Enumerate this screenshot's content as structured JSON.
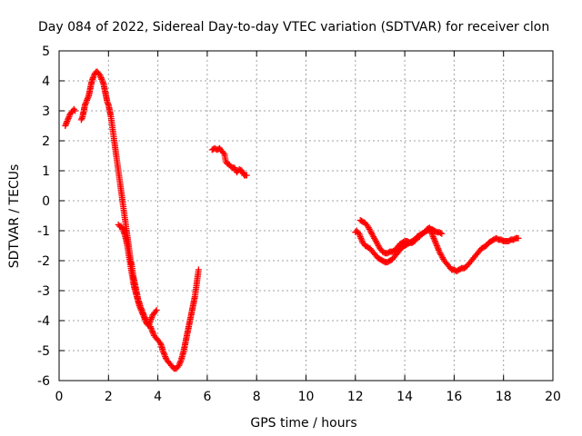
{
  "chart_data": {
    "type": "scatter",
    "title": "Day 084 of 2022, Sidereal Day-to-day VTEC variation (SDTVAR) for receiver clon",
    "xlabel": "GPS time / hours",
    "ylabel": "SDTVAR / TECUs",
    "xlim": [
      0,
      20
    ],
    "ylim": [
      -6,
      5
    ],
    "xticks": [
      0,
      2,
      4,
      6,
      8,
      10,
      12,
      14,
      16,
      18,
      20
    ],
    "yticks": [
      -6,
      -5,
      -4,
      -3,
      -2,
      -1,
      0,
      1,
      2,
      3,
      4,
      5
    ],
    "grid": true,
    "marker": "+",
    "color": "#ff0000",
    "series": [
      {
        "name": "SDTVAR",
        "segments": [
          [
            [
              0.25,
              2.5
            ],
            [
              0.3,
              2.6
            ],
            [
              0.35,
              2.7
            ],
            [
              0.4,
              2.8
            ],
            [
              0.45,
              2.9
            ],
            [
              0.5,
              2.95
            ],
            [
              0.55,
              3.0
            ],
            [
              0.6,
              3.05
            ],
            [
              0.65,
              3.0
            ]
          ],
          [
            [
              0.9,
              2.7
            ],
            [
              0.95,
              2.8
            ],
            [
              1.0,
              3.0
            ],
            [
              1.05,
              3.2
            ],
            [
              1.1,
              3.3
            ],
            [
              1.15,
              3.4
            ],
            [
              1.2,
              3.5
            ],
            [
              1.25,
              3.7
            ],
            [
              1.3,
              3.9
            ],
            [
              1.35,
              4.05
            ],
            [
              1.4,
              4.15
            ],
            [
              1.45,
              4.25
            ],
            [
              1.5,
              4.3
            ],
            [
              1.55,
              4.3
            ],
            [
              1.6,
              4.25
            ],
            [
              1.65,
              4.2
            ],
            [
              1.7,
              4.1
            ],
            [
              1.75,
              4.0
            ],
            [
              1.8,
              3.9
            ],
            [
              1.85,
              3.7
            ],
            [
              1.9,
              3.5
            ],
            [
              1.95,
              3.3
            ],
            [
              2.0,
              3.2
            ],
            [
              2.05,
              3.0
            ],
            [
              2.1,
              2.8
            ],
            [
              2.15,
              2.5
            ],
            [
              2.2,
              2.2
            ],
            [
              2.25,
              1.9
            ],
            [
              2.3,
              1.6
            ],
            [
              2.35,
              1.3
            ],
            [
              2.4,
              1.0
            ],
            [
              2.45,
              0.7
            ],
            [
              2.5,
              0.4
            ],
            [
              2.55,
              0.1
            ],
            [
              2.6,
              -0.2
            ],
            [
              2.65,
              -0.5
            ],
            [
              2.7,
              -0.8
            ],
            [
              2.75,
              -1.1
            ],
            [
              2.8,
              -1.4
            ],
            [
              2.85,
              -1.7
            ],
            [
              2.9,
              -2.0
            ],
            [
              2.95,
              -2.2
            ],
            [
              3.0,
              -2.5
            ],
            [
              3.05,
              -2.7
            ],
            [
              3.1,
              -2.9
            ],
            [
              3.15,
              -3.1
            ],
            [
              3.2,
              -3.3
            ],
            [
              3.25,
              -3.4
            ],
            [
              3.3,
              -3.55
            ],
            [
              3.35,
              -3.65
            ],
            [
              3.4,
              -3.75
            ],
            [
              3.45,
              -3.85
            ],
            [
              3.5,
              -3.95
            ],
            [
              3.55,
              -4.05
            ],
            [
              3.6,
              -4.1
            ],
            [
              3.65,
              -4.15
            ],
            [
              3.7,
              -4.2
            ],
            [
              3.75,
              -4.3
            ],
            [
              3.8,
              -4.4
            ],
            [
              3.85,
              -4.5
            ],
            [
              3.9,
              -4.55
            ],
            [
              3.95,
              -4.6
            ],
            [
              4.0,
              -4.65
            ],
            [
              4.05,
              -4.7
            ],
            [
              4.1,
              -4.75
            ],
            [
              4.15,
              -4.85
            ],
            [
              4.2,
              -5.0
            ],
            [
              4.25,
              -5.1
            ],
            [
              4.3,
              -5.2
            ],
            [
              4.35,
              -5.3
            ],
            [
              4.4,
              -5.35
            ],
            [
              4.45,
              -5.4
            ],
            [
              4.5,
              -5.45
            ],
            [
              4.55,
              -5.5
            ],
            [
              4.6,
              -5.55
            ],
            [
              4.65,
              -5.6
            ],
            [
              4.7,
              -5.6
            ],
            [
              4.75,
              -5.6
            ],
            [
              4.8,
              -5.55
            ],
            [
              4.85,
              -5.5
            ],
            [
              4.9,
              -5.4
            ],
            [
              4.95,
              -5.3
            ],
            [
              5.0,
              -5.15
            ],
            [
              5.05,
              -5.0
            ],
            [
              5.1,
              -4.8
            ],
            [
              5.15,
              -4.6
            ],
            [
              5.2,
              -4.4
            ],
            [
              5.25,
              -4.2
            ],
            [
              5.3,
              -4.0
            ],
            [
              5.35,
              -3.8
            ],
            [
              5.4,
              -3.6
            ],
            [
              5.45,
              -3.4
            ],
            [
              5.5,
              -3.2
            ],
            [
              5.55,
              -2.9
            ],
            [
              5.6,
              -2.6
            ],
            [
              5.65,
              -2.3
            ]
          ],
          [
            [
              2.4,
              -0.8
            ],
            [
              2.45,
              -0.85
            ],
            [
              2.5,
              -0.85
            ],
            [
              2.55,
              -0.9
            ],
            [
              2.6,
              -1.0
            ],
            [
              2.65,
              -1.1
            ],
            [
              2.7,
              -1.25
            ],
            [
              2.75,
              -1.45
            ],
            [
              2.8,
              -1.7
            ],
            [
              2.85,
              -1.95
            ],
            [
              2.9,
              -2.2
            ],
            [
              2.95,
              -2.45
            ],
            [
              3.0,
              -2.7
            ],
            [
              3.05,
              -2.9
            ],
            [
              3.1,
              -3.05
            ],
            [
              3.15,
              -3.2
            ],
            [
              3.2,
              -3.35
            ],
            [
              3.25,
              -3.5
            ],
            [
              3.3,
              -3.6
            ],
            [
              3.35,
              -3.7
            ],
            [
              3.4,
              -3.8
            ],
            [
              3.45,
              -3.9
            ],
            [
              3.5,
              -4.0
            ],
            [
              3.55,
              -4.1
            ],
            [
              3.6,
              -4.15
            ],
            [
              3.65,
              -4.1
            ],
            [
              3.7,
              -4.0
            ],
            [
              3.75,
              -3.9
            ],
            [
              3.8,
              -3.8
            ],
            [
              3.85,
              -3.75
            ],
            [
              3.9,
              -3.7
            ],
            [
              3.95,
              -3.65
            ]
          ],
          [
            [
              6.2,
              1.7
            ],
            [
              6.3,
              1.75
            ],
            [
              6.4,
              1.7
            ],
            [
              6.5,
              1.75
            ],
            [
              6.6,
              1.65
            ],
            [
              6.7,
              1.55
            ],
            [
              6.75,
              1.3
            ],
            [
              6.8,
              1.25
            ],
            [
              6.9,
              1.2
            ],
            [
              7.0,
              1.1
            ],
            [
              7.1,
              1.1
            ],
            [
              7.2,
              0.95
            ],
            [
              7.3,
              1.05
            ],
            [
              7.4,
              1.0
            ],
            [
              7.5,
              0.85
            ],
            [
              7.6,
              0.85
            ]
          ],
          [
            [
              12.0,
              -1.05
            ],
            [
              12.05,
              -1.0
            ],
            [
              12.1,
              -1.05
            ],
            [
              12.15,
              -1.1
            ],
            [
              12.2,
              -1.2
            ],
            [
              12.25,
              -1.3
            ],
            [
              12.3,
              -1.4
            ],
            [
              12.35,
              -1.45
            ],
            [
              12.4,
              -1.5
            ],
            [
              12.5,
              -1.55
            ],
            [
              12.6,
              -1.6
            ],
            [
              12.7,
              -1.7
            ],
            [
              12.8,
              -1.8
            ],
            [
              12.9,
              -1.9
            ],
            [
              13.0,
              -1.95
            ],
            [
              13.1,
              -2.0
            ],
            [
              13.2,
              -2.05
            ],
            [
              13.3,
              -2.05
            ],
            [
              13.4,
              -2.0
            ],
            [
              13.5,
              -1.95
            ],
            [
              13.6,
              -1.85
            ],
            [
              13.7,
              -1.75
            ],
            [
              13.8,
              -1.65
            ],
            [
              13.9,
              -1.55
            ],
            [
              14.0,
              -1.5
            ],
            [
              14.1,
              -1.45
            ],
            [
              14.2,
              -1.4
            ],
            [
              14.3,
              -1.35
            ],
            [
              14.4,
              -1.3
            ],
            [
              14.5,
              -1.2
            ],
            [
              14.6,
              -1.15
            ],
            [
              14.7,
              -1.1
            ],
            [
              14.8,
              -1.05
            ],
            [
              14.9,
              -1.0
            ],
            [
              15.0,
              -0.95
            ],
            [
              15.1,
              -0.95
            ],
            [
              15.2,
              -1.0
            ],
            [
              15.3,
              -1.05
            ],
            [
              15.4,
              -1.05
            ],
            [
              15.5,
              -1.1
            ]
          ],
          [
            [
              12.2,
              -0.65
            ],
            [
              12.3,
              -0.7
            ],
            [
              12.4,
              -0.75
            ],
            [
              12.5,
              -0.85
            ],
            [
              12.6,
              -1.0
            ],
            [
              12.7,
              -1.15
            ],
            [
              12.8,
              -1.3
            ],
            [
              12.9,
              -1.45
            ],
            [
              13.0,
              -1.6
            ],
            [
              13.1,
              -1.7
            ],
            [
              13.2,
              -1.75
            ],
            [
              13.3,
              -1.75
            ],
            [
              13.4,
              -1.7
            ],
            [
              13.5,
              -1.7
            ],
            [
              13.6,
              -1.65
            ],
            [
              13.7,
              -1.55
            ],
            [
              13.8,
              -1.45
            ],
            [
              13.9,
              -1.4
            ],
            [
              14.0,
              -1.35
            ],
            [
              14.1,
              -1.35
            ],
            [
              14.2,
              -1.4
            ],
            [
              14.3,
              -1.4
            ],
            [
              14.4,
              -1.35
            ],
            [
              14.5,
              -1.25
            ],
            [
              14.6,
              -1.2
            ],
            [
              14.7,
              -1.1
            ],
            [
              14.8,
              -1.05
            ],
            [
              14.9,
              -0.95
            ],
            [
              15.0,
              -0.9
            ],
            [
              15.05,
              -0.95
            ],
            [
              15.1,
              -1.1
            ],
            [
              15.2,
              -1.3
            ],
            [
              15.3,
              -1.5
            ],
            [
              15.4,
              -1.7
            ],
            [
              15.5,
              -1.85
            ],
            [
              15.6,
              -2.0
            ],
            [
              15.7,
              -2.1
            ],
            [
              15.8,
              -2.2
            ],
            [
              15.9,
              -2.3
            ],
            [
              16.0,
              -2.3
            ],
            [
              16.1,
              -2.35
            ],
            [
              16.2,
              -2.3
            ],
            [
              16.3,
              -2.25
            ],
            [
              16.4,
              -2.25
            ],
            [
              16.5,
              -2.2
            ],
            [
              16.6,
              -2.1
            ],
            [
              16.7,
              -2.0
            ],
            [
              16.8,
              -1.9
            ],
            [
              16.9,
              -1.8
            ],
            [
              17.0,
              -1.7
            ],
            [
              17.1,
              -1.6
            ],
            [
              17.2,
              -1.55
            ],
            [
              17.3,
              -1.5
            ],
            [
              17.4,
              -1.4
            ],
            [
              17.5,
              -1.35
            ],
            [
              17.6,
              -1.3
            ],
            [
              17.7,
              -1.25
            ],
            [
              17.8,
              -1.3
            ],
            [
              17.9,
              -1.3
            ],
            [
              18.0,
              -1.35
            ],
            [
              18.1,
              -1.35
            ],
            [
              18.2,
              -1.35
            ],
            [
              18.3,
              -1.3
            ],
            [
              18.4,
              -1.3
            ],
            [
              18.5,
              -1.25
            ],
            [
              18.6,
              -1.25
            ]
          ]
        ]
      }
    ]
  }
}
